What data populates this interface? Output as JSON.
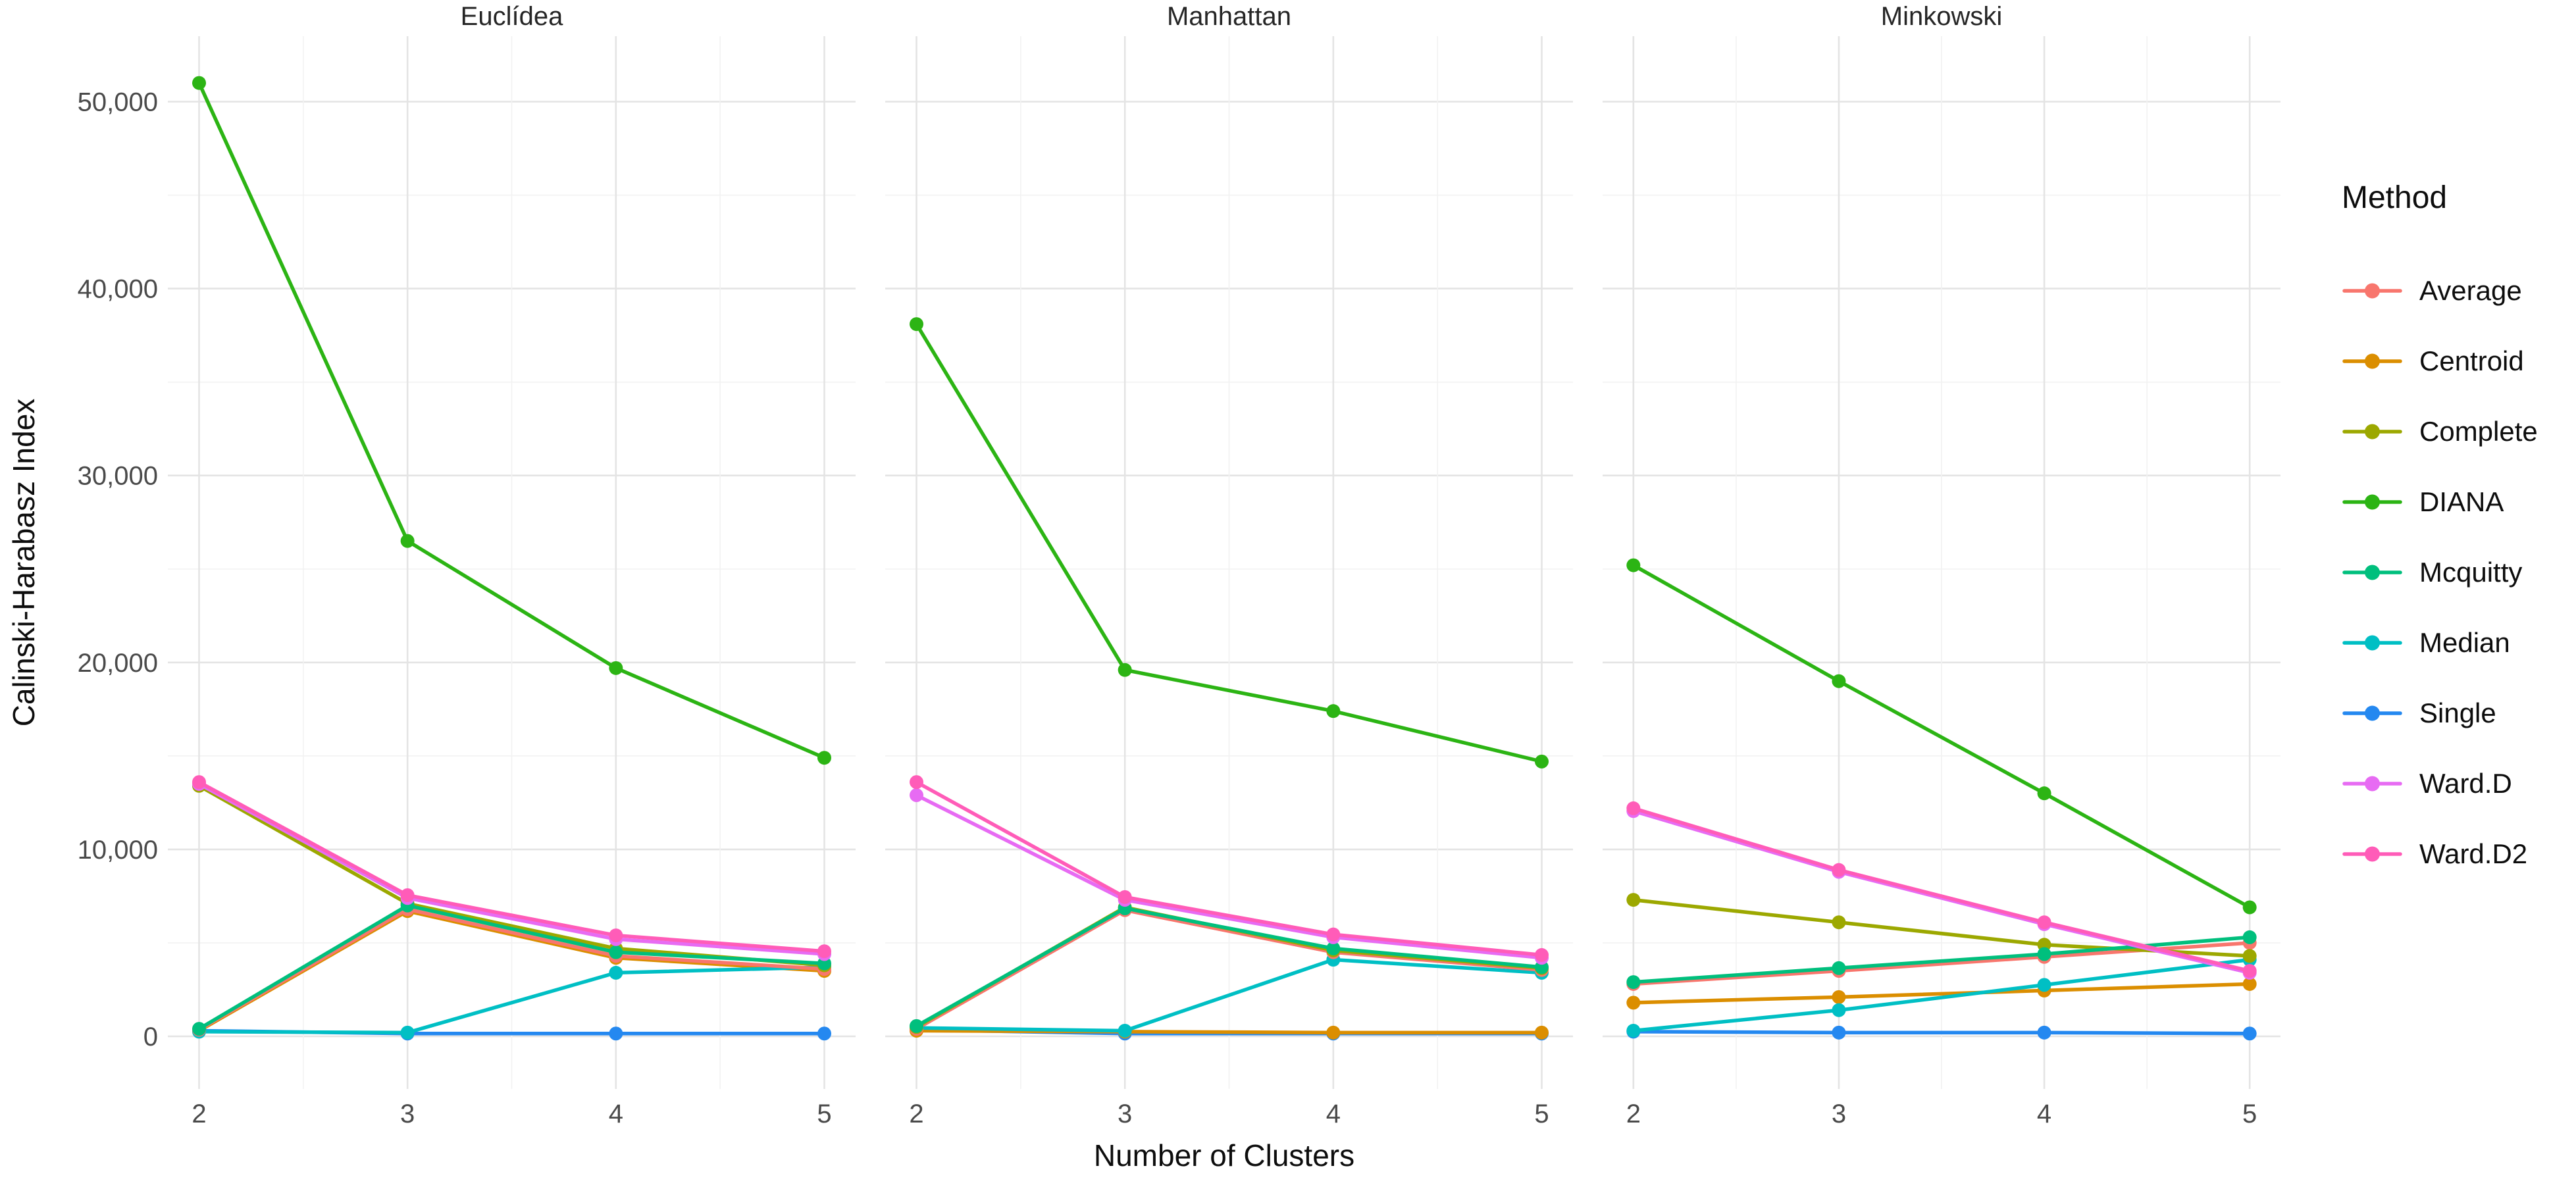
{
  "chart_data": {
    "type": "line",
    "title": "",
    "xlabel": "Number of Clusters",
    "ylabel": "Calinski-Harabasz Index",
    "x": [
      2,
      3,
      4,
      5
    ],
    "x_tick_labels": [
      "2",
      "3",
      "4",
      "5"
    ],
    "y_ticks": [
      0,
      10000,
      20000,
      30000,
      40000,
      50000
    ],
    "y_tick_labels": [
      "0",
      "10,000",
      "20,000",
      "30,000",
      "40,000",
      "50,000"
    ],
    "y_minor_ticks": [
      5000,
      15000,
      25000,
      35000,
      45000
    ],
    "x_minor_positions": [
      2.5,
      3.5,
      4.5
    ],
    "ylim": [
      0,
      51000
    ],
    "grid": "major+minor",
    "legend": {
      "title": "Method",
      "position": "right"
    },
    "methods": [
      {
        "name": "Average",
        "color": "#F8766D"
      },
      {
        "name": "Centroid",
        "color": "#DB8E00"
      },
      {
        "name": "Complete",
        "color": "#9CA800"
      },
      {
        "name": "DIANA",
        "color": "#2CB414"
      },
      {
        "name": "Mcquitty",
        "color": "#00BF7D"
      },
      {
        "name": "Median",
        "color": "#00BFC4"
      },
      {
        "name": "Single",
        "color": "#2488F0"
      },
      {
        "name": "Ward.D",
        "color": "#E76BF3"
      },
      {
        "name": "Ward.D2",
        "color": "#FF5CB8"
      }
    ],
    "draw_order": [
      "Single",
      "Centroid",
      "Median",
      "Average",
      "Complete",
      "DIANA",
      "Mcquitty",
      "Ward.D",
      "Ward.D2"
    ],
    "facets": [
      {
        "title": "Euclídea",
        "values": {
          "Average": [
            350,
            6800,
            4300,
            3600
          ],
          "Centroid": [
            300,
            6700,
            4200,
            3500
          ],
          "Complete": [
            13400,
            7100,
            4700,
            3800
          ],
          "DIANA": [
            51000,
            26500,
            19700,
            14900
          ],
          "Mcquitty": [
            400,
            7000,
            4500,
            3900
          ],
          "Median": [
            250,
            200,
            3400,
            3700
          ],
          "Single": [
            300,
            150,
            150,
            150
          ],
          "Ward.D": [
            13500,
            7400,
            5200,
            4400
          ],
          "Ward.D2": [
            13600,
            7550,
            5400,
            4550
          ]
        }
      },
      {
        "title": "Manhattan",
        "values": {
          "Average": [
            400,
            6750,
            4500,
            3550
          ],
          "Centroid": [
            300,
            250,
            200,
            200
          ],
          "Complete": [
            500,
            6900,
            4600,
            3650
          ],
          "DIANA": [
            38100,
            19600,
            17400,
            14700
          ],
          "Mcquitty": [
            550,
            6850,
            4700,
            3700
          ],
          "Median": [
            450,
            300,
            4100,
            3400
          ],
          "Single": [
            350,
            150,
            150,
            150
          ],
          "Ward.D": [
            12900,
            7300,
            5300,
            4200
          ],
          "Ward.D2": [
            13600,
            7450,
            5450,
            4350
          ]
        }
      },
      {
        "title": "Minkowski",
        "values": {
          "Average": [
            2800,
            3500,
            4250,
            5000
          ],
          "Centroid": [
            1800,
            2100,
            2450,
            2800
          ],
          "Complete": [
            7300,
            6100,
            4900,
            4300
          ],
          "DIANA": [
            25200,
            19000,
            13000,
            6900
          ],
          "Mcquitty": [
            2900,
            3650,
            4400,
            5300
          ],
          "Median": [
            300,
            1400,
            2750,
            4100
          ],
          "Single": [
            250,
            200,
            200,
            150
          ],
          "Ward.D": [
            12050,
            8800,
            6000,
            3400
          ],
          "Ward.D2": [
            12200,
            8900,
            6100,
            3500
          ]
        }
      }
    ],
    "colors": {
      "grid_major": "#E4E4E4",
      "grid_minor": "#F2F2F2",
      "tick_text": "#4a4a4a",
      "title_text": "#262626",
      "axis_title_text": "#0d0d0d"
    }
  }
}
